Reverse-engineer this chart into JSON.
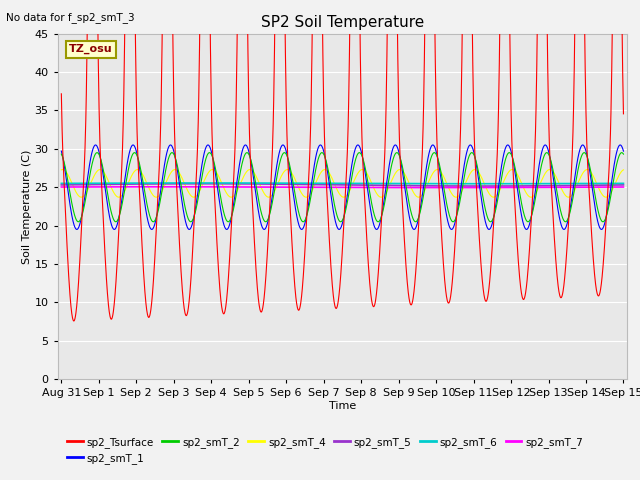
{
  "title": "SP2 Soil Temperature",
  "xlabel": "Time",
  "ylabel": "Soil Temperature (C)",
  "no_data_text": "No data for f_sp2_smT_3",
  "tz_label": "TZ_osu",
  "ylim": [
    0,
    45
  ],
  "x_tick_labels": [
    "Aug 31",
    "Sep 1",
    "Sep 2",
    "Sep 3",
    "Sep 4",
    "Sep 5",
    "Sep 6",
    "Sep 7",
    "Sep 8",
    "Sep 9",
    "Sep 10",
    "Sep 11",
    "Sep 12",
    "Sep 13",
    "Sep 14",
    "Sep 15"
  ],
  "series_colors": {
    "sp2_Tsurface": "#FF0000",
    "sp2_smT_1": "#0000FF",
    "sp2_smT_2": "#00CC00",
    "sp2_smT_4": "#FFFF00",
    "sp2_smT_5": "#9933CC",
    "sp2_smT_6": "#00CCCC",
    "sp2_smT_7": "#FF00FF"
  },
  "bg_color": "#E8E8E8",
  "fig_bg": "#F2F2F2"
}
